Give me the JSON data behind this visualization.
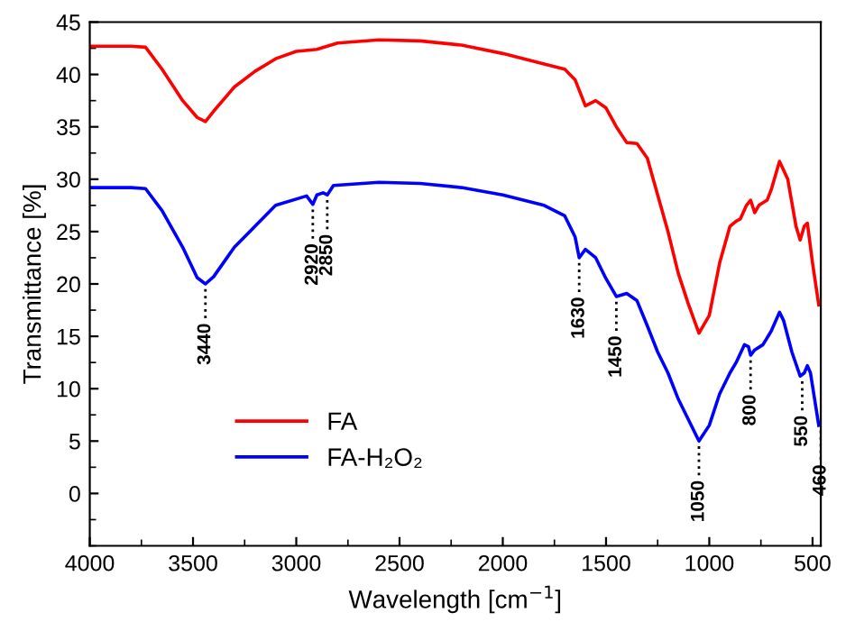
{
  "chart_data": {
    "type": "line",
    "xlabel": "Wavelength [cm$^{−1}$]",
    "ylabel": "Transmittance [%]",
    "xlim": [
      4000,
      460
    ],
    "ylim": [
      -5,
      45
    ],
    "xticks": [
      4000,
      3500,
      3000,
      2500,
      2000,
      1500,
      1000,
      500
    ],
    "yticks": [
      0,
      5,
      10,
      15,
      20,
      25,
      30,
      35,
      40,
      45
    ],
    "grid": false,
    "legend": "bottom left",
    "marker": "none",
    "line_style": "solid",
    "series": [
      {
        "name": "FA",
        "color": "#ff0000",
        "x": [
          4000,
          3800,
          3730,
          3650,
          3550,
          3480,
          3440,
          3400,
          3300,
          3200,
          3100,
          3000,
          2900,
          2800,
          2600,
          2400,
          2200,
          2000,
          1800,
          1700,
          1650,
          1600,
          1550,
          1500,
          1450,
          1400,
          1350,
          1300,
          1250,
          1200,
          1150,
          1100,
          1050,
          1000,
          950,
          900,
          870,
          850,
          820,
          800,
          780,
          760,
          720,
          700,
          660,
          620,
          580,
          560,
          540,
          525,
          500,
          470
        ],
        "values": [
          42.7,
          42.7,
          42.6,
          40.5,
          37.5,
          35.9,
          35.5,
          36.5,
          38.8,
          40.3,
          41.5,
          42.2,
          42.4,
          43,
          43.3,
          43.2,
          42.8,
          42,
          41,
          40.5,
          39.5,
          37,
          37.5,
          36.8,
          35,
          33.5,
          33.4,
          32,
          28.5,
          25,
          21,
          18,
          15.3,
          17,
          22,
          25.5,
          26,
          26.2,
          27.5,
          28,
          26.8,
          27.5,
          28,
          29,
          31.7,
          30,
          25.5,
          24.2,
          25.5,
          25.8,
          22,
          18
        ]
      },
      {
        "name": "FA-H₂O₂",
        "color": "#0000ff",
        "x": [
          4000,
          3800,
          3730,
          3650,
          3550,
          3480,
          3440,
          3400,
          3300,
          3200,
          3100,
          2950,
          2920,
          2900,
          2870,
          2850,
          2820,
          2600,
          2400,
          2200,
          2000,
          1800,
          1700,
          1650,
          1630,
          1600,
          1550,
          1500,
          1450,
          1400,
          1350,
          1300,
          1250,
          1200,
          1150,
          1100,
          1050,
          1000,
          950,
          900,
          870,
          830,
          810,
          800,
          780,
          740,
          700,
          660,
          640,
          600,
          560,
          540,
          525,
          510,
          490,
          470
        ],
        "values": [
          29.2,
          29.2,
          29.1,
          27,
          23.5,
          20.6,
          20,
          20.7,
          23.5,
          25.5,
          27.5,
          28.4,
          27.6,
          28.5,
          28.7,
          28.5,
          29.4,
          29.7,
          29.6,
          29.2,
          28.5,
          27.5,
          26.5,
          24.5,
          22.5,
          23.3,
          22.5,
          20.5,
          18.8,
          19.1,
          18.4,
          16,
          13.5,
          11.5,
          9,
          7,
          5,
          6.5,
          9.5,
          11.5,
          12.5,
          14.2,
          14,
          13.2,
          13.7,
          14.2,
          15.5,
          17.3,
          16.5,
          13.5,
          11.2,
          11.5,
          12.2,
          11.5,
          9,
          6.5
        ]
      }
    ],
    "annotations": [
      {
        "text": "3440",
        "x": 3440,
        "y": 20
      },
      {
        "text": "2920",
        "x": 2920,
        "y": 27.6
      },
      {
        "text": "2850",
        "x": 2850,
        "y": 28.5
      },
      {
        "text": "1630",
        "x": 1630,
        "y": 22.5
      },
      {
        "text": "1450",
        "x": 1450,
        "y": 18.8
      },
      {
        "text": "1050",
        "x": 1050,
        "y": 5
      },
      {
        "text": "800",
        "x": 800,
        "y": 13.2
      },
      {
        "text": "550",
        "x": 550,
        "y": 11.2
      },
      {
        "text": "460",
        "x": 460,
        "y": 6.5
      }
    ]
  }
}
